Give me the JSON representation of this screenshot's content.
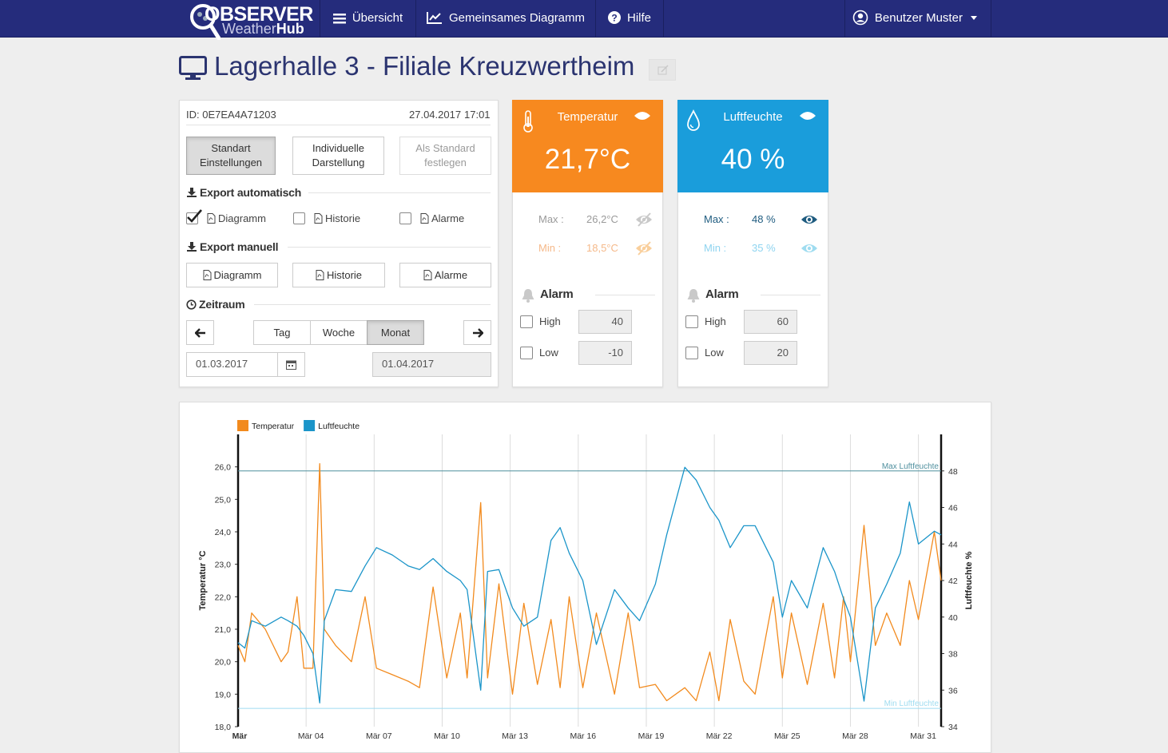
{
  "navbar": {
    "logo": {
      "main": "OBSERVER",
      "sub1": "Weather",
      "sub2": "Hub"
    },
    "items": [
      "Übersicht",
      "Gemeinsames Diagramm",
      "Hilfe"
    ],
    "user": "Benutzer Muster"
  },
  "page_title": "Lagerhalle 3 - Filiale Kreuzwertheim",
  "settings": {
    "device_id": "ID: 0E7EA4A71203",
    "date": "27.04.2017",
    "time": "17:01",
    "view_buttons": [
      "Standart Einstellungen",
      "Individuelle Darstellung",
      "Als Standard festlegen"
    ],
    "export_auto": {
      "title": "Export automatisch",
      "options": [
        {
          "label": "Diagramm",
          "checked": true
        },
        {
          "label": "Historie",
          "checked": false
        },
        {
          "label": "Alarme",
          "checked": false
        }
      ]
    },
    "export_manual": {
      "title": "Export manuell",
      "buttons": [
        "Diagramm",
        "Historie",
        "Alarme"
      ]
    },
    "period": {
      "title": "Zeitraum",
      "options": [
        "Tag",
        "Woche",
        "Monat"
      ],
      "active": 2,
      "from": "01.03.2017",
      "to": "01.04.2017"
    }
  },
  "sensors": [
    {
      "title": "Temperatur",
      "value": "21,7°C",
      "color": "#f7891f",
      "max_label": "Max :",
      "max": "26,2°C",
      "min_label": "Min :",
      "min": "18,5°C",
      "alarm": "Alarm",
      "high_label": "High",
      "high": 40,
      "low_label": "Low",
      "low": -10
    },
    {
      "title": "Luftfeuchte",
      "value": "40 %",
      "color": "#1a9ddb",
      "max_label": "Max :",
      "max": "48 %",
      "min_label": "Min :",
      "min": "35 %",
      "alarm": "Alarm",
      "high_label": "High",
      "high": 60,
      "low_label": "Low",
      "low": 20
    }
  ],
  "chart_data": {
    "type": "line",
    "y_label": "Temperatur °C",
    "y2_label": "Luftfeuchte %",
    "legend": "top-left",
    "grid": "x",
    "x": [
      1.0,
      1.3,
      1.6,
      2.2,
      2.9,
      3.2,
      3.6,
      3.9,
      4.3,
      4.6,
      4.8,
      5.3,
      6.0,
      6.6,
      7.1,
      7.8,
      8.5,
      9.0,
      9.6,
      10.2,
      10.8,
      11.1,
      11.7,
      12.0,
      12.5,
      13.1,
      13.6,
      14.2,
      14.8,
      15.2,
      15.6,
      16.2,
      16.8,
      17.6,
      18.2,
      18.7,
      19.4,
      19.9,
      20.7,
      21.2,
      21.8,
      22.2,
      22.7,
      23.3,
      23.8,
      24.6,
      25.0,
      25.4,
      26.1,
      26.8,
      27.3,
      27.7,
      28.0,
      28.6,
      29.1,
      29.6,
      30.2,
      30.6,
      31.0,
      31.7,
      32.0
    ],
    "series": [
      {
        "name": "Temperatur",
        "color": "#f28a1d",
        "axis": "y",
        "values": [
          20.5,
          20.0,
          21.5,
          21.0,
          20.0,
          20.3,
          22.0,
          19.8,
          19.8,
          26.1,
          21.0,
          20.5,
          20.0,
          22.0,
          19.8,
          19.6,
          19.4,
          19.2,
          22.3,
          19.5,
          21.5,
          19.5,
          24.9,
          19.5,
          22.4,
          19.0,
          21.8,
          19.3,
          21.3,
          19.2,
          22.0,
          19.2,
          21.5,
          19.0,
          21.5,
          19.2,
          19.3,
          18.8,
          19.2,
          18.8,
          20.3,
          18.8,
          21.3,
          19.4,
          19.0,
          22.0,
          19.5,
          21.5,
          19.3,
          21.8,
          19.5,
          22.0,
          20.0,
          24.2,
          20.5,
          21.5,
          20.5,
          22.5,
          21.3,
          24.0,
          22.5
        ]
      },
      {
        "name": "Luftfeuchte",
        "color": "#1b95c9",
        "axis": "y2",
        "values": [
          38.6,
          38.3,
          39.8,
          39.5,
          40.0,
          39.8,
          39.5,
          39.0,
          38.0,
          35.3,
          39.8,
          41.5,
          41.4,
          42.8,
          43.8,
          43.4,
          42.8,
          42.6,
          43.2,
          42.5,
          42.0,
          41.5,
          36.0,
          42.5,
          42.6,
          40.5,
          39.5,
          40.0,
          44.2,
          44.9,
          43.5,
          42.0,
          38.5,
          41.5,
          40.5,
          39.8,
          41.8,
          44.5,
          48.2,
          47.5,
          46.0,
          45.3,
          43.8,
          45.0,
          45.0,
          43.0,
          40.0,
          42.0,
          40.5,
          43.8,
          42.5,
          41.0,
          40.0,
          35.4,
          40.5,
          41.8,
          43.5,
          46.3,
          44.0,
          44.7,
          44.5
        ]
      }
    ],
    "reference_lines": [
      {
        "label": "Max Luftfeuchte",
        "value": 48,
        "axis": "y2",
        "color": "#4f8f9e"
      },
      {
        "label": "Min Luftfeuchte",
        "value": 35,
        "axis": "y2",
        "color": "#9fdcf0"
      }
    ],
    "xlim": [
      1,
      32
    ],
    "xticks": [
      {
        "value": 1,
        "label": "Mär"
      },
      {
        "value": 4,
        "label": "Mär 04"
      },
      {
        "value": 7,
        "label": "Mär 07"
      },
      {
        "value": 10,
        "label": "Mär 10"
      },
      {
        "value": 13,
        "label": "Mär 13"
      },
      {
        "value": 16,
        "label": "Mär 16"
      },
      {
        "value": 19,
        "label": "Mär 19"
      },
      {
        "value": 22,
        "label": "Mär 22"
      },
      {
        "value": 25,
        "label": "Mär 25"
      },
      {
        "value": 28,
        "label": "Mär 28"
      },
      {
        "value": 31,
        "label": "Mär 31"
      }
    ],
    "ylim": [
      18,
      27
    ],
    "yticks": [
      {
        "value": 18,
        "label": "18,0"
      },
      {
        "value": 19,
        "label": "19,0"
      },
      {
        "value": 20,
        "label": "20,0"
      },
      {
        "value": 21,
        "label": "21,0"
      },
      {
        "value": 22,
        "label": "22,0"
      },
      {
        "value": 23,
        "label": "23,0"
      },
      {
        "value": 24,
        "label": "24,0"
      },
      {
        "value": 25,
        "label": "25,0"
      },
      {
        "value": 26,
        "label": "26,0"
      }
    ],
    "y2lim": [
      34,
      50
    ],
    "y2ticks": [
      34,
      36,
      38,
      40,
      42,
      44,
      46,
      48
    ]
  }
}
